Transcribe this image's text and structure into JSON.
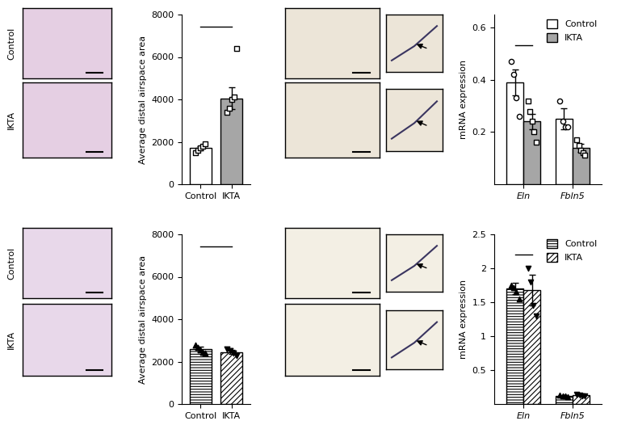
{
  "images": {
    "row_labels": [
      "Control",
      "IKTA"
    ]
  },
  "chart_data": [
    {
      "type": "bar",
      "ylabel": "Average distal airspace area",
      "categories": [
        "Control",
        "IKTA"
      ],
      "values": [
        1700,
        4050
      ],
      "errors": [
        90,
        520
      ],
      "points": [
        [
          1500,
          1600,
          1700,
          1800,
          1900
        ],
        [
          3400,
          3600,
          4000,
          4100,
          6400
        ]
      ],
      "colors": [
        "#ffffff",
        "#a6a6a6"
      ],
      "markers": [
        "square",
        "square"
      ],
      "ylim": [
        0,
        8000
      ],
      "yticks": [
        0,
        2000,
        4000,
        6000,
        8000
      ]
    },
    {
      "type": "grouped_bar",
      "ylabel": "mRNA expression",
      "categories": [
        "Eln",
        "Fbln5"
      ],
      "series": [
        {
          "name": "Control",
          "color": "#ffffff",
          "marker": "circle",
          "values": [
            0.39,
            0.25
          ],
          "errors": [
            0.05,
            0.04
          ],
          "points": [
            [
              0.47,
              0.42,
              0.33,
              0.26
            ],
            [
              0.32,
              0.24,
              0.22,
              0.22
            ]
          ]
        },
        {
          "name": "IKTA",
          "color": "#a6a6a6",
          "marker": "square",
          "values": [
            0.24,
            0.14
          ],
          "errors": [
            0.03,
            0.015
          ],
          "points": [
            [
              0.32,
              0.28,
              0.24,
              0.2,
              0.16
            ],
            [
              0.17,
              0.15,
              0.13,
              0.12,
              0.11
            ]
          ]
        }
      ],
      "legend": "upper right",
      "ylim": [
        0,
        0.65
      ],
      "yticks": [
        0.2,
        0.4,
        0.6
      ]
    },
    {
      "type": "bar",
      "ylabel": "Average distal airspace area",
      "categories": [
        "Control",
        "IKTA"
      ],
      "values": [
        2600,
        2450
      ],
      "errors": [
        120,
        100
      ],
      "points": [
        [
          2800,
          2650,
          2550,
          2450,
          2400
        ],
        [
          2600,
          2500,
          2400,
          2300
        ]
      ],
      "colors": [
        "#ffffff",
        "#ffffff"
      ],
      "markers": [
        "triangle",
        "triangle_down"
      ],
      "ylim": [
        0,
        8000
      ],
      "yticks": [
        0,
        2000,
        4000,
        6000,
        8000
      ]
    },
    {
      "type": "grouped_bar",
      "ylabel": "mRNA expression",
      "categories": [
        "Eln",
        "Fbln5"
      ],
      "series": [
        {
          "name": "Control",
          "color": "#ffffff",
          "marker": "triangle",
          "values": [
            1.7,
            0.12
          ],
          "errors": [
            0.08,
            0.01
          ],
          "points": [
            [
              1.75,
              1.72,
              1.65,
              1.55
            ],
            [
              0.13,
              0.12,
              0.12,
              0.11
            ]
          ]
        },
        {
          "name": "IKTA",
          "color": "#ffffff",
          "marker": "triangle_down",
          "values": [
            1.68,
            0.13
          ],
          "errors": [
            0.23,
            0.01
          ],
          "points": [
            [
              2.0,
              1.8,
              1.45,
              1.3
            ],
            [
              0.14,
              0.13,
              0.12,
              0.12
            ]
          ]
        }
      ],
      "legend": "upper right",
      "ylim": [
        0,
        2.5
      ],
      "yticks": [
        0.5,
        1,
        1.5,
        2,
        2.5
      ]
    }
  ]
}
